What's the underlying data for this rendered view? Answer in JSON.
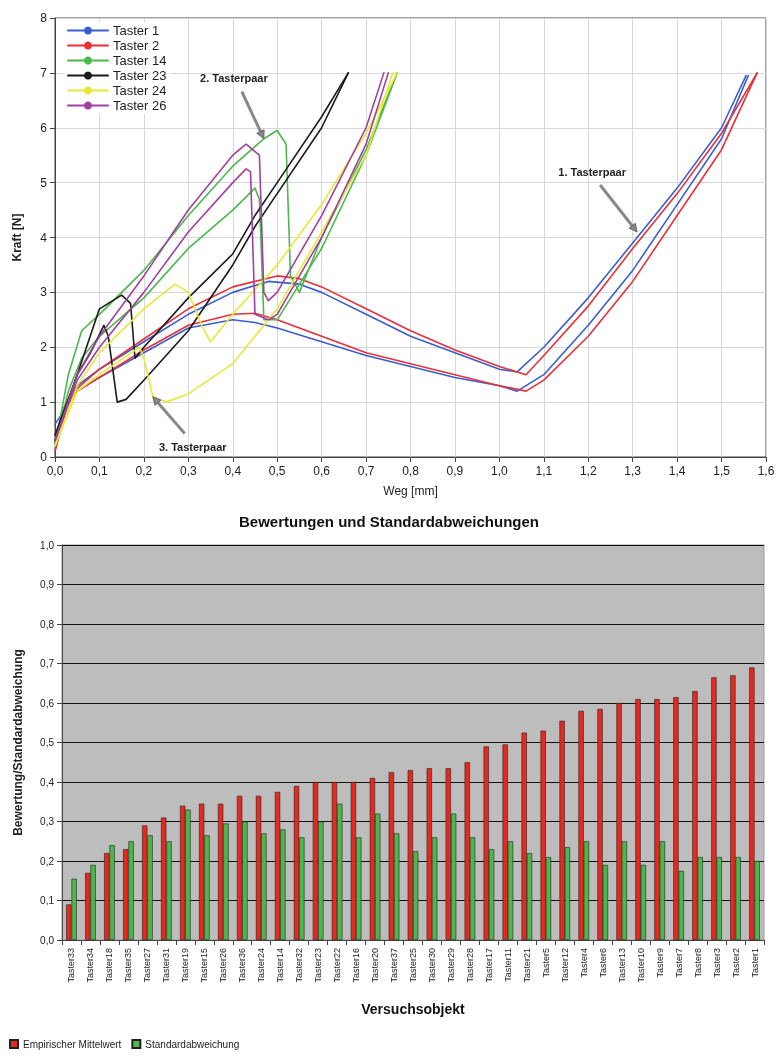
{
  "chart_data": [
    {
      "type": "line",
      "xlabel": "Weg [mm]",
      "ylabel": "Kraft [N]",
      "xlim": [
        0,
        1.6
      ],
      "ylim": [
        0,
        8
      ],
      "xticks": [
        {
          "value": 0,
          "label": "0,0"
        },
        {
          "value": 0.1,
          "label": "0,1"
        },
        {
          "value": 0.2,
          "label": "0,2"
        },
        {
          "value": 0.3,
          "label": "0,3"
        },
        {
          "value": 0.4,
          "label": "0,4"
        },
        {
          "value": 0.5,
          "label": "0,5"
        },
        {
          "value": 0.6,
          "label": "0,6"
        },
        {
          "value": 0.7,
          "label": "0,7"
        },
        {
          "value": 0.8,
          "label": "0,8"
        },
        {
          "value": 0.9,
          "label": "0,9"
        },
        {
          "value": 1.0,
          "label": "1,0"
        },
        {
          "value": 1.1,
          "label": "1,1"
        },
        {
          "value": 1.2,
          "label": "1,2"
        },
        {
          "value": 1.3,
          "label": "1,3"
        },
        {
          "value": 1.4,
          "label": "1,4"
        },
        {
          "value": 1.5,
          "label": "1,5"
        },
        {
          "value": 1.6,
          "label": "1,6"
        }
      ],
      "yticks": [
        0,
        1,
        2,
        3,
        4,
        5,
        6,
        7,
        8
      ],
      "grid": true,
      "legend": "top left",
      "marker": "none",
      "line_style": "solid",
      "annotations": [
        {
          "text": "1. Tasterpaar",
          "x": 1.31,
          "y": 4.1
        },
        {
          "text": "2. Tasterpaar",
          "x": 0.47,
          "y": 5.8
        },
        {
          "text": "3. Tasterpaar",
          "x": 0.22,
          "y": 1.1
        }
      ],
      "series": [
        {
          "name": "Taster 1",
          "color": "#3a5fcd",
          "x": [
            0,
            0.02,
            0.05,
            0.1,
            0.2,
            0.3,
            0.4,
            0.48,
            0.55,
            0.6,
            0.7,
            0.8,
            0.9,
            1.0,
            1.04,
            1.1,
            1.2,
            1.3,
            1.4,
            1.5,
            1.555
          ],
          "values": [
            0.3,
            0.9,
            1.3,
            1.6,
            2.1,
            2.6,
            3.0,
            3.2,
            3.15,
            3.0,
            2.6,
            2.2,
            1.9,
            1.6,
            1.55,
            2.0,
            2.9,
            3.9,
            4.9,
            6.0,
            6.95
          ]
        },
        {
          "color": "#3a5fcd",
          "x": [
            0,
            0.05,
            0.1,
            0.2,
            0.3,
            0.4,
            0.45,
            0.5,
            0.6,
            0.7,
            0.8,
            0.9,
            1.0,
            1.04,
            1.1,
            1.2,
            1.3,
            1.4,
            1.5,
            1.56
          ],
          "values": [
            0.6,
            1.2,
            1.45,
            1.9,
            2.35,
            2.5,
            2.45,
            2.35,
            2.1,
            1.85,
            1.65,
            1.45,
            1.3,
            1.2,
            1.5,
            2.4,
            3.4,
            4.6,
            5.8,
            6.95
          ]
        },
        {
          "name": "Taster 2",
          "color": "#e8303a",
          "x": [
            0,
            0.03,
            0.05,
            0.1,
            0.2,
            0.3,
            0.4,
            0.5,
            0.55,
            0.6,
            0.7,
            0.8,
            0.9,
            1.0,
            1.06,
            1.1,
            1.2,
            1.3,
            1.4,
            1.5,
            1.58
          ],
          "values": [
            0.1,
            1.0,
            1.25,
            1.6,
            2.15,
            2.7,
            3.1,
            3.3,
            3.25,
            3.1,
            2.7,
            2.3,
            1.95,
            1.65,
            1.5,
            1.85,
            2.75,
            3.8,
            4.8,
            5.9,
            7.0
          ]
        },
        {
          "color": "#e8303a",
          "x": [
            0,
            0.03,
            0.05,
            0.1,
            0.2,
            0.3,
            0.4,
            0.45,
            0.5,
            0.6,
            0.7,
            0.8,
            0.9,
            1.0,
            1.06,
            1.1,
            1.2,
            1.3,
            1.4,
            1.5,
            1.58
          ],
          "values": [
            0.3,
            1.05,
            1.2,
            1.45,
            1.95,
            2.4,
            2.6,
            2.62,
            2.5,
            2.2,
            1.9,
            1.7,
            1.5,
            1.3,
            1.2,
            1.4,
            2.2,
            3.2,
            4.4,
            5.6,
            7.0
          ]
        },
        {
          "name": "Taster 14",
          "color": "#4cb84c",
          "x": [
            0,
            0.03,
            0.06,
            0.1,
            0.2,
            0.3,
            0.4,
            0.47,
            0.5,
            0.52,
            0.53,
            0.55,
            0.6,
            0.7,
            0.77
          ],
          "values": [
            0.2,
            1.5,
            2.3,
            2.6,
            3.4,
            4.4,
            5.3,
            5.8,
            5.95,
            5.7,
            3.3,
            3.0,
            4.0,
            5.6,
            7.0
          ]
        },
        {
          "color": "#4cb84c",
          "x": [
            0,
            0.03,
            0.06,
            0.1,
            0.2,
            0.3,
            0.4,
            0.45,
            0.46,
            0.47,
            0.5,
            0.6,
            0.7,
            0.77
          ],
          "values": [
            0.2,
            1.2,
            1.8,
            2.2,
            2.9,
            3.8,
            4.5,
            4.9,
            4.7,
            2.5,
            2.5,
            3.8,
            5.5,
            7.0
          ]
        },
        {
          "name": "Taster 23",
          "color": "#1a1a1a",
          "x": [
            0,
            0.05,
            0.1,
            0.15,
            0.17,
            0.18,
            0.2,
            0.3,
            0.4,
            0.45,
            0.5,
            0.6,
            0.66
          ],
          "values": [
            0.3,
            1.5,
            2.7,
            2.95,
            2.8,
            1.8,
            2.0,
            2.9,
            3.7,
            4.4,
            5.0,
            6.2,
            7.0
          ]
        },
        {
          "color": "#1a1a1a",
          "x": [
            0,
            0.05,
            0.08,
            0.11,
            0.12,
            0.14,
            0.16,
            0.2,
            0.3,
            0.4,
            0.45,
            0.5,
            0.6,
            0.66
          ],
          "values": [
            0.4,
            1.5,
            1.9,
            2.4,
            2.2,
            1.0,
            1.05,
            1.4,
            2.3,
            3.5,
            4.2,
            4.8,
            6.0,
            7.0
          ]
        },
        {
          "name": "Taster 24",
          "color": "#e8e83a",
          "x": [
            0,
            0.05,
            0.1,
            0.2,
            0.27,
            0.3,
            0.33,
            0.35,
            0.4,
            0.5,
            0.6,
            0.7,
            0.77
          ],
          "values": [
            0.2,
            1.3,
            1.9,
            2.7,
            3.15,
            3.0,
            2.4,
            2.1,
            2.6,
            3.5,
            4.6,
            5.9,
            7.0
          ]
        },
        {
          "color": "#e8e83a",
          "x": [
            0,
            0.05,
            0.1,
            0.19,
            0.2,
            0.22,
            0.25,
            0.3,
            0.4,
            0.5,
            0.6,
            0.7,
            0.76
          ],
          "values": [
            0.2,
            1.2,
            1.5,
            2.0,
            1.8,
            1.1,
            1.0,
            1.15,
            1.7,
            2.7,
            4.1,
            5.5,
            7.0
          ]
        },
        {
          "name": "Taster 26",
          "color": "#a040a0",
          "x": [
            0,
            0.05,
            0.1,
            0.2,
            0.3,
            0.4,
            0.43,
            0.46,
            0.47,
            0.48,
            0.5,
            0.6,
            0.7,
            0.74
          ],
          "values": [
            0.3,
            1.5,
            2.2,
            3.3,
            4.5,
            5.5,
            5.7,
            5.5,
            3.0,
            2.85,
            3.0,
            4.4,
            6.0,
            7.0
          ]
        },
        {
          "color": "#a040a0",
          "x": [
            0,
            0.05,
            0.1,
            0.2,
            0.3,
            0.4,
            0.43,
            0.44,
            0.45,
            0.48,
            0.5,
            0.6,
            0.7,
            0.75
          ],
          "values": [
            0.3,
            1.4,
            2.0,
            3.0,
            4.1,
            5.0,
            5.25,
            5.2,
            2.6,
            2.5,
            2.6,
            4.0,
            5.7,
            7.0
          ]
        }
      ]
    },
    {
      "type": "bar",
      "title": "Bewertungen und Standardabweichungen",
      "xlabel": "Versuchsobjekt",
      "ylabel": "Bewertung/Standardabweichung",
      "categories": [
        "Taster33",
        "Taster34",
        "Taster18",
        "Taster35",
        "Taster27",
        "Taster31",
        "Taster19",
        "Taster15",
        "Taster26",
        "Taster36",
        "Taster24",
        "Taster14",
        "Taster32",
        "Taster23",
        "Taster22",
        "Taster16",
        "Taster20",
        "Taster37",
        "Taster25",
        "Taster30",
        "Taster29",
        "Taster28",
        "Taster17",
        "Taster11",
        "Taster21",
        "Taster5",
        "Taster12",
        "Taster4",
        "Taster6",
        "Taster13",
        "Taster10",
        "Taster9",
        "Taster7",
        "Taster8",
        "Taster3",
        "Taster2",
        "Taster1"
      ],
      "ylim": [
        0,
        1
      ],
      "yticks": [
        {
          "value": 0,
          "label": "0,0"
        },
        {
          "value": 0.1,
          "label": "0,1"
        },
        {
          "value": 0.2,
          "label": "0,2"
        },
        {
          "value": 0.3,
          "label": "0,3"
        },
        {
          "value": 0.4,
          "label": "0,4"
        },
        {
          "value": 0.5,
          "label": "0,5"
        },
        {
          "value": 0.6,
          "label": "0,6"
        },
        {
          "value": 0.7,
          "label": "0,7"
        },
        {
          "value": 0.8,
          "label": "0,8"
        },
        {
          "value": 0.9,
          "label": "0,9"
        },
        {
          "value": 1.0,
          "label": "1,0"
        }
      ],
      "grid": "y",
      "legend": "bottom left",
      "series": [
        {
          "name": "Empirischer Mittelwert",
          "color": "#e8281e",
          "values": [
            0.09,
            0.17,
            0.22,
            0.23,
            0.29,
            0.31,
            0.34,
            0.345,
            0.345,
            0.365,
            0.365,
            0.375,
            0.39,
            0.4,
            0.4,
            0.4,
            0.41,
            0.425,
            0.43,
            0.435,
            0.435,
            0.45,
            0.49,
            0.495,
            0.525,
            0.53,
            0.555,
            0.58,
            0.585,
            0.6,
            0.61,
            0.61,
            0.615,
            0.63,
            0.665,
            0.67,
            0.69
          ]
        },
        {
          "name": "Standardabweichung",
          "color": "#4cb84c",
          "values": [
            0.155,
            0.19,
            0.24,
            0.25,
            0.265,
            0.25,
            0.33,
            0.265,
            0.295,
            0.3,
            0.27,
            0.28,
            0.26,
            0.3,
            0.345,
            0.26,
            0.32,
            0.27,
            0.225,
            0.26,
            0.32,
            0.26,
            0.23,
            0.25,
            0.22,
            0.21,
            0.235,
            0.25,
            0.19,
            0.25,
            0.19,
            0.25,
            0.175,
            0.21,
            0.21,
            0.21,
            0.2
          ]
        }
      ]
    }
  ]
}
